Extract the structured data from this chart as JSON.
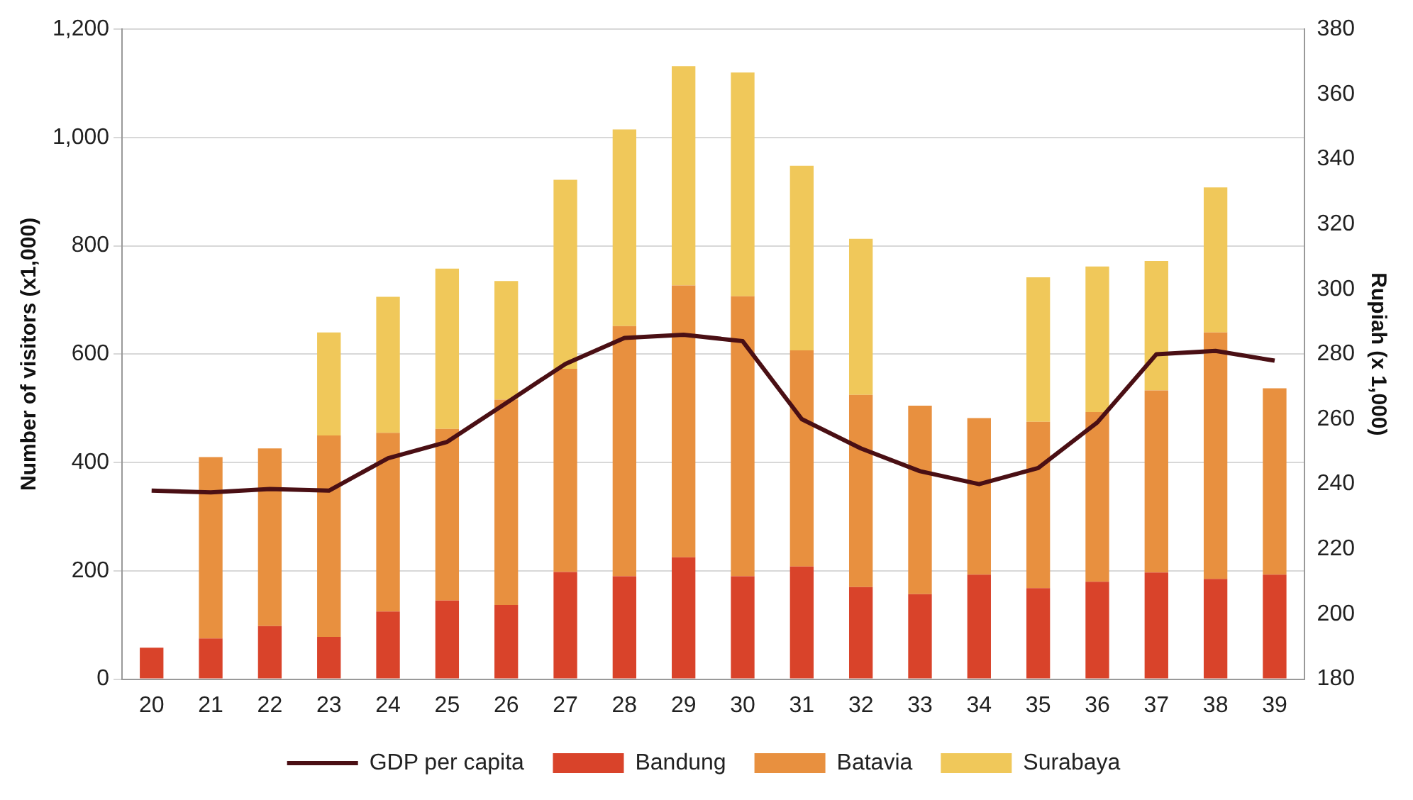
{
  "chart_data": {
    "type": "bar",
    "stacked": true,
    "ylabel": "Number of visitors (x1,000)",
    "y2label": "Rupiah (x 1,000)",
    "categories": [
      "20",
      "21",
      "22",
      "23",
      "24",
      "25",
      "26",
      "27",
      "28",
      "29",
      "30",
      "31",
      "32",
      "33",
      "34",
      "35",
      "36",
      "37",
      "38",
      "39"
    ],
    "series": [
      {
        "name": "Bandung",
        "color": "#d9432a",
        "values": [
          58,
          75,
          98,
          78,
          125,
          145,
          137,
          198,
          190,
          225,
          190,
          208,
          170,
          157,
          193,
          168,
          180,
          197,
          185,
          193
        ]
      },
      {
        "name": "Batavia",
        "color": "#e8903f",
        "values": [
          null,
          335,
          328,
          372,
          330,
          317,
          379,
          375,
          462,
          502,
          517,
          399,
          355,
          348,
          289,
          307,
          313,
          336,
          455,
          344
        ]
      },
      {
        "name": "Surabaya",
        "color": "#f0c85a",
        "values": [
          null,
          null,
          null,
          190,
          251,
          296,
          219,
          349,
          363,
          405,
          413,
          341,
          288,
          null,
          null,
          267,
          269,
          239,
          268,
          null
        ]
      },
      {
        "name": "GDP per capita",
        "type": "line",
        "axis": "y2",
        "color": "#4a0f14",
        "values": [
          238,
          237.5,
          238.5,
          238,
          248,
          253,
          265,
          277,
          285,
          286,
          284,
          260,
          251,
          244,
          240,
          245,
          259,
          280,
          281,
          278
        ]
      }
    ],
    "ylim": [
      0,
      1200
    ],
    "yticks": [
      0,
      200,
      400,
      600,
      800,
      {
        "value": 1000,
        "label": "1,000"
      },
      {
        "value": 1200,
        "label": "1,200"
      }
    ],
    "y2lim": [
      180,
      380
    ],
    "y2ticks": [
      180,
      200,
      220,
      240,
      260,
      280,
      300,
      320,
      340,
      360,
      380
    ],
    "grid": "y",
    "legend": "bottom"
  }
}
